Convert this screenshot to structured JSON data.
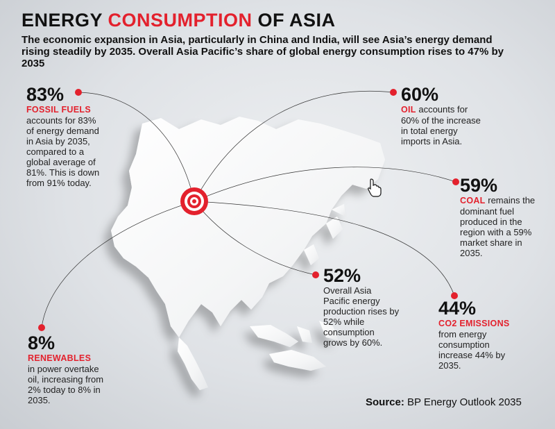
{
  "title": {
    "part1": "ENERGY ",
    "accent": "CONSUMPTION",
    "part2": " OF ASIA"
  },
  "intro": "The economic expansion in Asia, particularly in China and India, will see Asia’s energy demand rising steadily by 2035. Overall Asia Pacific’s share of global energy consumption rises to 47% by 2035",
  "colors": {
    "accent": "#e3212d",
    "text": "#111111",
    "map": "#ffffff",
    "background": "#dfe2e6"
  },
  "stats": {
    "fossil": {
      "pct": "83%",
      "head": "FOSSIL FUELS",
      "body": "accounts for 83% of energy demand in Asia by 2035, compared to a global average of 81%. This is down from 91% today."
    },
    "oil": {
      "pct": "60%",
      "head": "OIL",
      "body": " accounts for 60% of the increase in total energy imports in Asia."
    },
    "coal": {
      "pct": "59%",
      "head": "COAL",
      "body": " remains the dominant fuel produced in the region with a 59% market share in 2035."
    },
    "production": {
      "pct": "52%",
      "body": "Overall Asia Pacific energy production rises by 52% while consumption grows by 60%."
    },
    "co2": {
      "pct": "44%",
      "head": "CO2 EMISSIONS",
      "body": "from energy consumption increase 44% by 2035."
    },
    "renewables": {
      "pct": "8%",
      "head": "RENEWABLES",
      "body": "in power overtake oil, increasing from 2% today to 8% in 2035."
    }
  },
  "source": {
    "label": "Source:",
    "text": " BP Energy Outlook 2035"
  },
  "icons": {
    "target": "target-icon",
    "cursor": "hand-cursor-icon"
  }
}
